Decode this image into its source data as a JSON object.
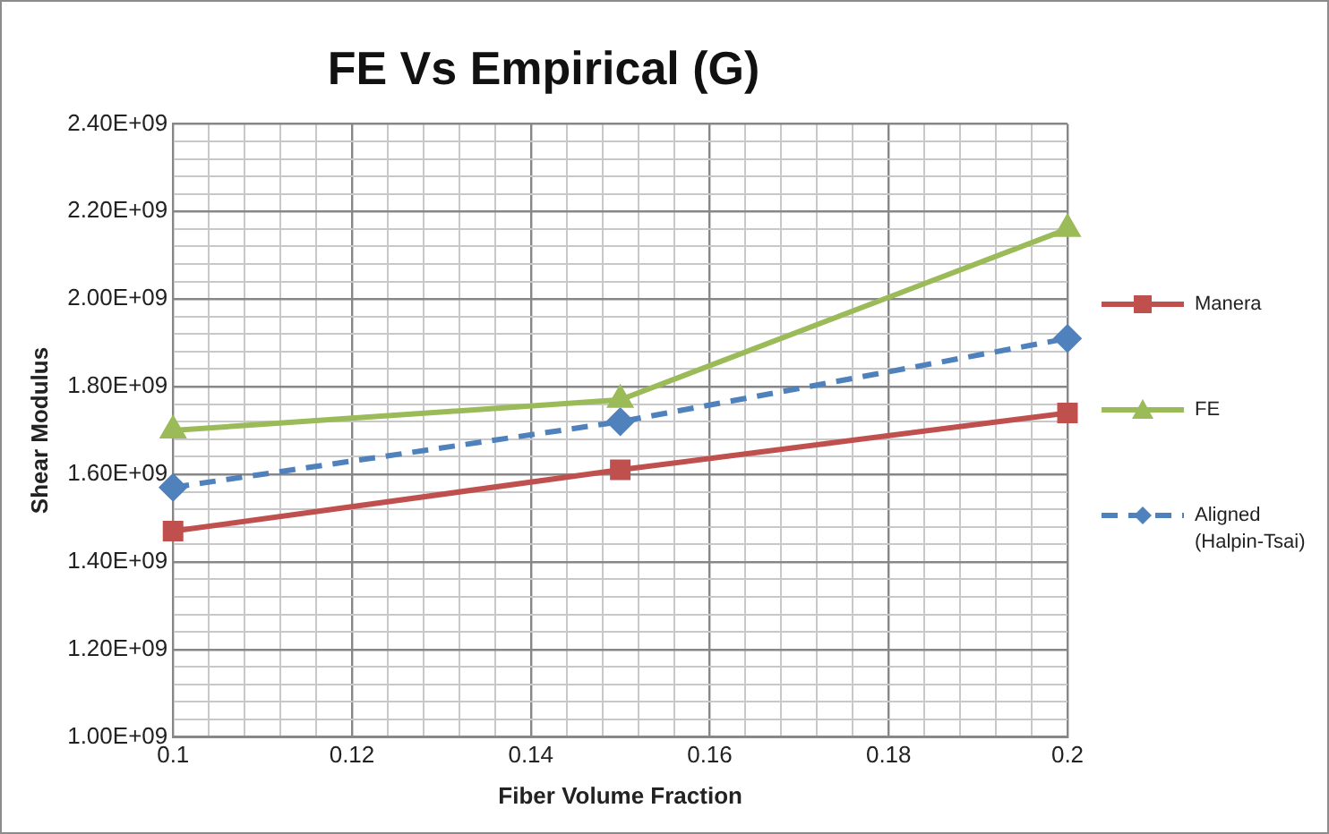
{
  "chart_data": {
    "type": "line",
    "title": "FE Vs Empirical (G)",
    "xlabel": "Fiber Volume Fraction",
    "ylabel": "Shear Modulus",
    "x": [
      0.1,
      0.15,
      0.2
    ],
    "series": [
      {
        "name": "Manera",
        "color": "#c0504d",
        "marker": "square",
        "line_style": "solid",
        "values": [
          1470000000,
          1610000000,
          1740000000
        ]
      },
      {
        "name": "FE",
        "color": "#9bbb59",
        "marker": "triangle",
        "line_style": "solid",
        "values": [
          1700000000,
          1770000000,
          2160000000
        ]
      },
      {
        "name": "Aligned (Halpin-Tsai)",
        "color": "#4f81bd",
        "marker": "diamond",
        "line_style": "dashed",
        "values": [
          1570000000,
          1720000000,
          1910000000
        ]
      }
    ],
    "xlim": [
      0.1,
      0.2
    ],
    "xticks": [
      0.1,
      {
        "value": 0.104,
        "label": null
      },
      {
        "value": 0.108,
        "label": null
      },
      {
        "value": 0.112,
        "label": null
      },
      {
        "value": 0.116,
        "label": null
      },
      0.12,
      {
        "value": 0.124,
        "label": null
      },
      {
        "value": 0.128,
        "label": null
      },
      {
        "value": 0.132,
        "label": null
      },
      {
        "value": 0.136,
        "label": null
      },
      0.14,
      {
        "value": 0.144,
        "label": null
      },
      {
        "value": 0.148,
        "label": null
      },
      {
        "value": 0.152,
        "label": null
      },
      {
        "value": 0.156,
        "label": null
      },
      0.16,
      {
        "value": 0.164,
        "label": null
      },
      {
        "value": 0.168,
        "label": null
      },
      {
        "value": 0.172,
        "label": null
      },
      {
        "value": 0.176,
        "label": null
      },
      0.18,
      {
        "value": 0.184,
        "label": null
      },
      {
        "value": 0.188,
        "label": null
      },
      {
        "value": 0.192,
        "label": null
      },
      {
        "value": 0.196,
        "label": null
      },
      0.2
    ],
    "ylim": [
      1000000000,
      2400000000
    ],
    "yticks": [
      {
        "value": 1000000000,
        "label": "1.00E+09"
      },
      {
        "value": 1040000000,
        "label": null
      },
      {
        "value": 1080000000,
        "label": null
      },
      {
        "value": 1120000000,
        "label": null
      },
      {
        "value": 1160000000,
        "label": null
      },
      {
        "value": 1200000000,
        "label": "1.20E+09"
      },
      {
        "value": 1240000000,
        "label": null
      },
      {
        "value": 1280000000,
        "label": null
      },
      {
        "value": 1320000000,
        "label": null
      },
      {
        "value": 1360000000,
        "label": null
      },
      {
        "value": 1400000000,
        "label": "1.40E+09"
      },
      {
        "value": 1440000000,
        "label": null
      },
      {
        "value": 1480000000,
        "label": null
      },
      {
        "value": 1520000000,
        "label": null
      },
      {
        "value": 1560000000,
        "label": null
      },
      {
        "value": 1600000000,
        "label": "1.60E+09"
      },
      {
        "value": 1640000000,
        "label": null
      },
      {
        "value": 1680000000,
        "label": null
      },
      {
        "value": 1720000000,
        "label": null
      },
      {
        "value": 1760000000,
        "label": null
      },
      {
        "value": 1800000000,
        "label": "1.80E+09"
      },
      {
        "value": 1840000000,
        "label": null
      },
      {
        "value": 1880000000,
        "label": null
      },
      {
        "value": 1920000000,
        "label": null
      },
      {
        "value": 1960000000,
        "label": null
      },
      {
        "value": 2000000000,
        "label": "2.00E+09"
      },
      {
        "value": 2040000000,
        "label": null
      },
      {
        "value": 2080000000,
        "label": null
      },
      {
        "value": 2120000000,
        "label": null
      },
      {
        "value": 2160000000,
        "label": null
      },
      {
        "value": 2200000000,
        "label": "2.20E+09"
      },
      {
        "value": 2240000000,
        "label": null
      },
      {
        "value": 2280000000,
        "label": null
      },
      {
        "value": 2320000000,
        "label": null
      },
      {
        "value": 2360000000,
        "label": null
      },
      {
        "value": 2400000000,
        "label": "2.40E+09"
      }
    ],
    "grid": true,
    "legend": "right"
  }
}
